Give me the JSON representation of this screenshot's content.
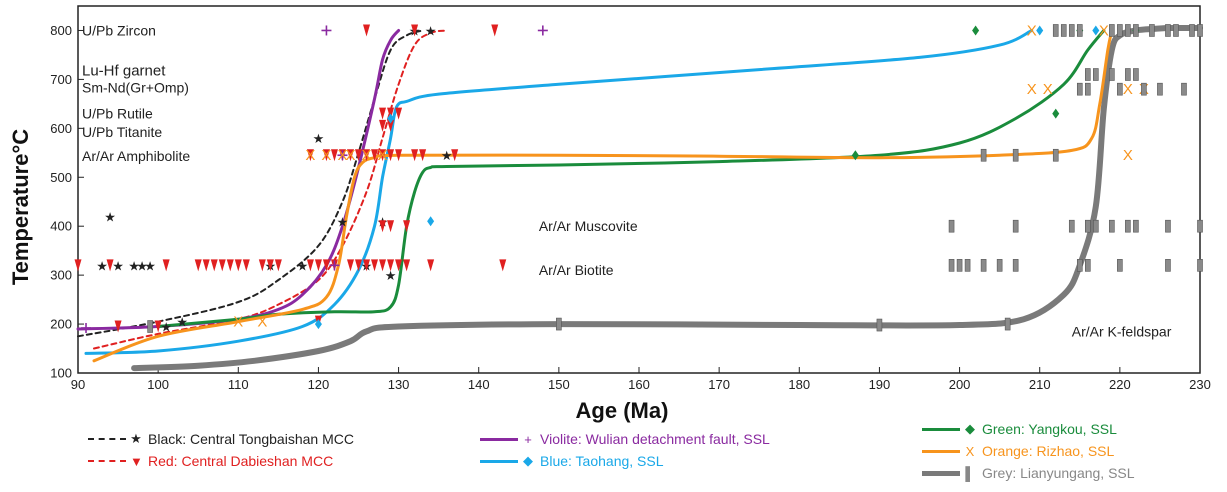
{
  "chart_data": {
    "type": "line",
    "xlabel": "Age (Ma)",
    "ylabel": "Temperature°C",
    "xlim": [
      90,
      230
    ],
    "ylim": [
      100,
      850
    ],
    "x_ticks": [
      90,
      100,
      110,
      120,
      130,
      140,
      150,
      160,
      170,
      180,
      190,
      200,
      210,
      220,
      230
    ],
    "y_ticks": [
      100,
      200,
      300,
      400,
      500,
      600,
      700,
      800
    ],
    "grid": false,
    "system_labels": [
      {
        "text": "U/Pb Zircon",
        "x": 90.5,
        "y": 800
      },
      {
        "text": "Lu-Hf garnet",
        "x": 90.5,
        "y": 718
      },
      {
        "text": "Sm-Nd(Gr+Omp)",
        "x": 90.5,
        "y": 683
      },
      {
        "text": "U/Pb Rutile",
        "x": 90.5,
        "y": 630
      },
      {
        "text": "U/Pb Titanite",
        "x": 90.5,
        "y": 592
      },
      {
        "text": "Ar/Ar Amphibolite",
        "x": 90.5,
        "y": 543
      },
      {
        "text": "Ar/Ar Muscovite",
        "x": 147.5,
        "y": 400
      },
      {
        "text": "Ar/Ar Biotite",
        "x": 147.5,
        "y": 310
      },
      {
        "text": "Ar/Ar K-feldspar",
        "x": 214,
        "y": 185
      }
    ],
    "series": [
      {
        "name": "Black: Central Tongbaishan  MCC",
        "color": "#222222",
        "style": "dashed",
        "width": 2,
        "marker": "star",
        "x": [
          90,
          100,
          110,
          115,
          120,
          123,
          125,
          127,
          129,
          131,
          133
        ],
        "y": [
          175,
          205,
          245,
          290,
          360,
          450,
          550,
          660,
          760,
          790,
          800
        ],
        "points": [
          [
            93,
            320
          ],
          [
            94,
            420
          ],
          [
            95,
            320
          ],
          [
            97,
            320
          ],
          [
            98,
            320
          ],
          [
            99,
            320
          ],
          [
            101,
            195
          ],
          [
            103,
            205
          ],
          [
            114,
            320
          ],
          [
            118,
            320
          ],
          [
            120,
            580
          ],
          [
            123,
            410
          ],
          [
            126,
            320
          ],
          [
            128,
            410
          ],
          [
            129,
            300
          ],
          [
            132,
            800
          ],
          [
            134,
            800
          ],
          [
            136,
            545
          ]
        ]
      },
      {
        "name": "Red: Central Dabieshan MCC",
        "color": "#e02020",
        "style": "dashed",
        "width": 2,
        "marker": "triangle",
        "x": [
          92,
          100,
          110,
          115,
          120,
          123,
          126,
          128,
          130,
          132,
          134,
          136
        ],
        "y": [
          150,
          180,
          210,
          240,
          290,
          360,
          470,
          580,
          690,
          770,
          795,
          800
        ],
        "points": [
          [
            90,
            320
          ],
          [
            94,
            320
          ],
          [
            95,
            195
          ],
          [
            100,
            195
          ],
          [
            101,
            320
          ],
          [
            105,
            320
          ],
          [
            106,
            320
          ],
          [
            107,
            320
          ],
          [
            108,
            320
          ],
          [
            109,
            320
          ],
          [
            110,
            320
          ],
          [
            111,
            320
          ],
          [
            113,
            320
          ],
          [
            114,
            320
          ],
          [
            115,
            320
          ],
          [
            119,
            320
          ],
          [
            120,
            320
          ],
          [
            121,
            320
          ],
          [
            122,
            320
          ],
          [
            124,
            320
          ],
          [
            125,
            320
          ],
          [
            126,
            320
          ],
          [
            127,
            320
          ],
          [
            128,
            320
          ],
          [
            129,
            320
          ],
          [
            130,
            320
          ],
          [
            131,
            320
          ],
          [
            134,
            320
          ],
          [
            143,
            320
          ],
          [
            119,
            545
          ],
          [
            121,
            545
          ],
          [
            122,
            545
          ],
          [
            123,
            545
          ],
          [
            124,
            545
          ],
          [
            125,
            545
          ],
          [
            126,
            545
          ],
          [
            127,
            545
          ],
          [
            128,
            545
          ],
          [
            129,
            545
          ],
          [
            130,
            545
          ],
          [
            132,
            545
          ],
          [
            133,
            545
          ],
          [
            137,
            545
          ],
          [
            128,
            630
          ],
          [
            129,
            630
          ],
          [
            130,
            630
          ],
          [
            129,
            605
          ],
          [
            128,
            605
          ],
          [
            128,
            400
          ],
          [
            129,
            400
          ],
          [
            131,
            400
          ],
          [
            126,
            800
          ],
          [
            132,
            800
          ],
          [
            142,
            800
          ],
          [
            120,
            205
          ]
        ]
      },
      {
        "name": "Violite: Wulian detachment fault, SSL",
        "color": "#8a2aa0",
        "style": "solid",
        "width": 3,
        "marker": "plus",
        "x": [
          90,
          100,
          110,
          115,
          118,
          121,
          123,
          125,
          127,
          128,
          129,
          130
        ],
        "y": [
          190,
          195,
          210,
          230,
          260,
          320,
          400,
          520,
          660,
          740,
          780,
          800
        ],
        "points": [
          [
            91,
            192
          ],
          [
            121,
            800
          ],
          [
            148,
            800
          ],
          [
            123,
            545
          ],
          [
            122,
            320
          ]
        ]
      },
      {
        "name": "Blue: Taohang, SSL",
        "color": "#1aa8e8",
        "style": "solid",
        "width": 3,
        "marker": "diamond",
        "x": [
          91,
          100,
          110,
          118,
          122,
          125,
          127,
          128,
          129,
          129.5,
          130,
          131,
          135,
          150,
          175,
          195,
          205,
          209
        ],
        "y": [
          140,
          145,
          165,
          195,
          240,
          310,
          400,
          500,
          580,
          630,
          650,
          655,
          670,
          690,
          720,
          745,
          770,
          800
        ],
        "points": [
          [
            134,
            410
          ],
          [
            129,
            620
          ],
          [
            120,
            200
          ],
          [
            210,
            800
          ],
          [
            217,
            800
          ]
        ]
      },
      {
        "name": "Green: Yangkou, SSL",
        "color": "#1a8c3c",
        "style": "solid",
        "width": 3,
        "marker": "diamond",
        "x": [
          100,
          110,
          115,
          122,
          127,
          129,
          130,
          131,
          132,
          133,
          134,
          136,
          150,
          170,
          190,
          200,
          207,
          213,
          216,
          218
        ],
        "y": [
          195,
          210,
          220,
          225,
          225,
          235,
          280,
          400,
          470,
          510,
          520,
          522,
          525,
          532,
          545,
          570,
          620,
          690,
          760,
          800
        ],
        "points": [
          [
            187,
            545
          ],
          [
            202,
            800
          ],
          [
            212,
            630
          ],
          [
            215,
            800
          ],
          [
            222,
            800
          ]
        ]
      },
      {
        "name": "Orange: Rizhao, SSL",
        "color": "#f7941d",
        "style": "solid",
        "width": 3,
        "marker": "x",
        "x": [
          92,
          100,
          110,
          118,
          121,
          122.5,
          123.5,
          124.5,
          125.5,
          127,
          130,
          150,
          170,
          190,
          205,
          214,
          216.5,
          217.5,
          218.5,
          219
        ],
        "y": [
          125,
          175,
          205,
          230,
          255,
          320,
          420,
          500,
          530,
          540,
          545,
          545,
          543,
          540,
          545,
          555,
          580,
          650,
          760,
          800
        ],
        "points": [
          [
            110,
            205
          ],
          [
            113,
            205
          ],
          [
            119,
            545
          ],
          [
            121,
            545
          ],
          [
            123,
            545
          ],
          [
            124,
            545
          ],
          [
            126,
            545
          ],
          [
            128,
            545
          ],
          [
            209,
            800
          ],
          [
            209,
            680
          ],
          [
            211,
            680
          ],
          [
            218,
            800
          ],
          [
            221,
            680
          ],
          [
            223,
            680
          ],
          [
            221,
            545
          ]
        ]
      },
      {
        "name": "Grey: Lianyungang, SSL",
        "color": "#7a7a7a",
        "style": "solid",
        "width": 6,
        "marker": "bar",
        "x": [
          97,
          105,
          112,
          120,
          124,
          126,
          130,
          150,
          180,
          200,
          208,
          213,
          215,
          217,
          218,
          219,
          220,
          222,
          224,
          226,
          228,
          230
        ],
        "y": [
          110,
          115,
          125,
          145,
          165,
          185,
          195,
          200,
          198,
          198,
          210,
          260,
          320,
          440,
          640,
          760,
          790,
          800,
          803,
          805,
          805,
          805
        ],
        "points": [
          [
            99,
            195
          ],
          [
            150,
            200
          ],
          [
            190,
            198
          ],
          [
            199,
            400
          ],
          [
            199,
            320
          ],
          [
            200,
            320
          ],
          [
            201,
            320
          ],
          [
            203,
            320
          ],
          [
            205,
            320
          ],
          [
            207,
            320
          ],
          [
            207,
            400
          ],
          [
            206,
            200
          ],
          [
            203,
            545
          ],
          [
            207,
            545
          ],
          [
            212,
            545
          ],
          [
            215,
            320
          ],
          [
            216,
            320
          ],
          [
            214,
            400
          ],
          [
            216,
            400
          ],
          [
            217,
            400
          ],
          [
            219,
            400
          ],
          [
            221,
            400
          ],
          [
            222,
            400
          ],
          [
            226,
            400
          ],
          [
            230,
            400
          ],
          [
            220,
            320
          ],
          [
            226,
            320
          ],
          [
            230,
            320
          ],
          [
            215,
            680
          ],
          [
            216,
            680
          ],
          [
            220,
            680
          ],
          [
            223,
            680
          ],
          [
            225,
            680
          ],
          [
            228,
            680
          ],
          [
            216,
            710
          ],
          [
            217,
            710
          ],
          [
            219,
            710
          ],
          [
            221,
            710
          ],
          [
            222,
            710
          ],
          [
            212,
            800
          ],
          [
            213,
            800
          ],
          [
            214,
            800
          ],
          [
            215,
            800
          ],
          [
            219,
            800
          ],
          [
            220,
            800
          ],
          [
            221,
            800
          ],
          [
            222,
            800
          ],
          [
            224,
            800
          ],
          [
            226,
            800
          ],
          [
            227,
            800
          ],
          [
            229,
            800
          ],
          [
            230,
            800
          ]
        ]
      }
    ],
    "legend": {
      "placement": "bottom",
      "columns": [
        [
          "Black: Central Tongbaishan  MCC",
          "Red: Central Dabieshan MCC"
        ],
        [
          "Violite: Wulian detachment fault, SSL",
          "Blue: Taohang, SSL"
        ],
        [
          "Green: Yangkou, SSL",
          "Orange: Rizhao, SSL",
          "Grey: Lianyungang, SSL"
        ]
      ]
    }
  }
}
